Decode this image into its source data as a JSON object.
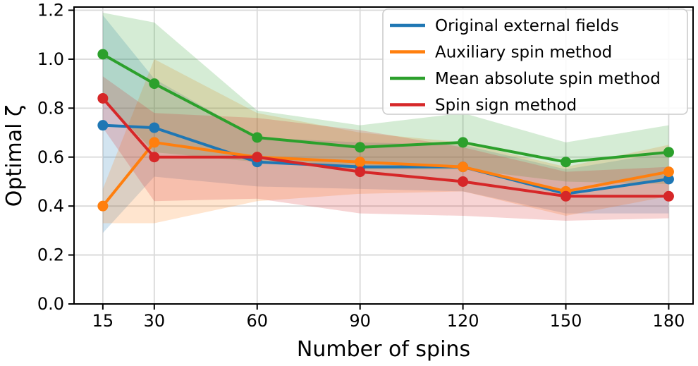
{
  "chart_data": {
    "type": "line",
    "title": "",
    "xlabel": "Number of spins",
    "ylabel": "Optimal ζ",
    "x": [
      15,
      30,
      60,
      90,
      120,
      150,
      180
    ],
    "x_tick_labels": [
      "15",
      "30",
      "60",
      "90",
      "120",
      "150",
      "180"
    ],
    "y_ticks": [
      0.0,
      0.2,
      0.4,
      0.6,
      0.8,
      1.0,
      1.2
    ],
    "y_tick_labels": [
      "0.0",
      "0.2",
      "0.4",
      "0.6",
      "0.8",
      "1.0",
      "1.2"
    ],
    "xlim": [
      6.6,
      187.1
    ],
    "ylim": [
      0.0,
      1.213
    ],
    "grid": true,
    "grid_color": "#d9d9d9",
    "axis_color": "#000000",
    "band_alpha": 0.2,
    "legend_position": "upper right",
    "series": [
      {
        "name": "Original external fields",
        "color": "#1f77b4",
        "values": [
          0.73,
          0.72,
          0.58,
          0.56,
          0.56,
          0.45,
          0.51
        ],
        "band_lower": [
          0.29,
          0.52,
          0.48,
          0.47,
          0.46,
          0.37,
          0.37
        ],
        "band_upper": [
          1.18,
          0.92,
          0.68,
          0.66,
          0.65,
          0.55,
          0.62
        ]
      },
      {
        "name": "Auxiliary spin method",
        "color": "#ff7f0e",
        "values": [
          0.4,
          0.66,
          0.6,
          0.58,
          0.56,
          0.46,
          0.54
        ],
        "band_lower": [
          0.33,
          0.33,
          0.42,
          0.45,
          0.46,
          0.36,
          0.44
        ],
        "band_upper": [
          0.47,
          1.0,
          0.78,
          0.7,
          0.66,
          0.56,
          0.65
        ]
      },
      {
        "name": "Mean absolute spin method",
        "color": "#2ca02c",
        "values": [
          1.02,
          0.9,
          0.68,
          0.64,
          0.66,
          0.58,
          0.62
        ],
        "band_lower": [
          0.84,
          0.62,
          0.58,
          0.55,
          0.55,
          0.5,
          0.49
        ],
        "band_upper": [
          1.19,
          1.15,
          0.79,
          0.73,
          0.78,
          0.66,
          0.73
        ]
      },
      {
        "name": "Spin sign method",
        "color": "#d62728",
        "values": [
          0.84,
          0.6,
          0.6,
          0.54,
          0.5,
          0.44,
          0.44
        ],
        "band_lower": [
          0.72,
          0.42,
          0.43,
          0.37,
          0.36,
          0.34,
          0.35
        ],
        "band_upper": [
          0.93,
          0.78,
          0.76,
          0.71,
          0.64,
          0.54,
          0.56
        ]
      }
    ]
  }
}
